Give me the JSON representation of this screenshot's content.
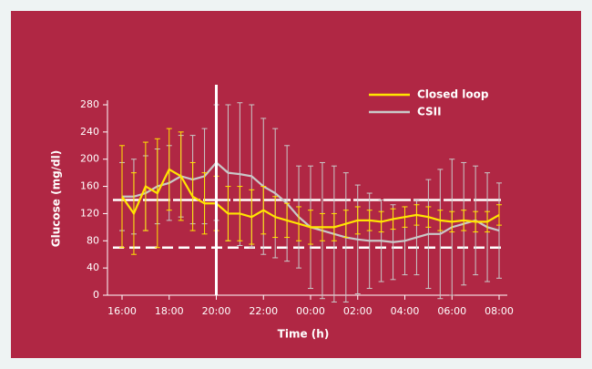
{
  "chart_data": {
    "type": "line_errorbar",
    "xlabel": "Time (h)",
    "ylabel": "Glucose (mg/dl)",
    "x": [
      16,
      16.5,
      17,
      17.5,
      18,
      18.5,
      19,
      19.5,
      20,
      20.5,
      21,
      21.5,
      22,
      22.5,
      23,
      23.5,
      24,
      24.5,
      25,
      25.5,
      26,
      26.5,
      27,
      27.5,
      28,
      28.5,
      29,
      29.5,
      30,
      30.5,
      31,
      31.5,
      32
    ],
    "series": [
      {
        "name": "CSII",
        "color": "#c9c9c9",
        "values": [
          145,
          145,
          150,
          160,
          165,
          175,
          170,
          175,
          195,
          180,
          178,
          175,
          160,
          150,
          135,
          115,
          100,
          95,
          90,
          85,
          82,
          80,
          80,
          78,
          80,
          85,
          90,
          90,
          100,
          105,
          110,
          100,
          95
        ],
        "errors": [
          50,
          55,
          55,
          55,
          55,
          60,
          65,
          70,
          85,
          100,
          105,
          105,
          100,
          95,
          85,
          75,
          90,
          100,
          100,
          95,
          80,
          70,
          60,
          55,
          50,
          55,
          80,
          95,
          100,
          90,
          80,
          80,
          70
        ]
      },
      {
        "name": "Closed loop",
        "color": "#ffe600",
        "values": [
          145,
          120,
          160,
          150,
          185,
          175,
          145,
          135,
          135,
          120,
          120,
          115,
          125,
          115,
          110,
          105,
          100,
          100,
          100,
          105,
          110,
          110,
          108,
          112,
          115,
          118,
          115,
          110,
          108,
          110,
          108,
          108,
          118
        ],
        "errors": [
          75,
          60,
          65,
          80,
          60,
          65,
          50,
          45,
          40,
          40,
          40,
          40,
          35,
          30,
          25,
          25,
          25,
          20,
          20,
          20,
          20,
          15,
          15,
          15,
          15,
          15,
          15,
          15,
          15,
          15,
          15,
          15,
          15
        ]
      }
    ],
    "hlines": [
      140,
      70
    ],
    "vline": 20,
    "xlim": [
      15.4,
      32.3
    ],
    "ylim": [
      0,
      280
    ],
    "xticks": [
      {
        "value": 16,
        "label": "16:00"
      },
      {
        "value": 18,
        "label": "18:00"
      },
      {
        "value": 20,
        "label": "20:00"
      },
      {
        "value": 22,
        "label": "22:00"
      },
      {
        "value": 24,
        "label": "00:00"
      },
      {
        "value": 26,
        "label": "02:00"
      },
      {
        "value": 28,
        "label": "04:00"
      },
      {
        "value": 30,
        "label": "06:00"
      },
      {
        "value": 32,
        "label": "08:00"
      }
    ],
    "yticks": [
      0,
      40,
      80,
      120,
      160,
      200,
      240,
      280
    ],
    "legend": "top right"
  }
}
